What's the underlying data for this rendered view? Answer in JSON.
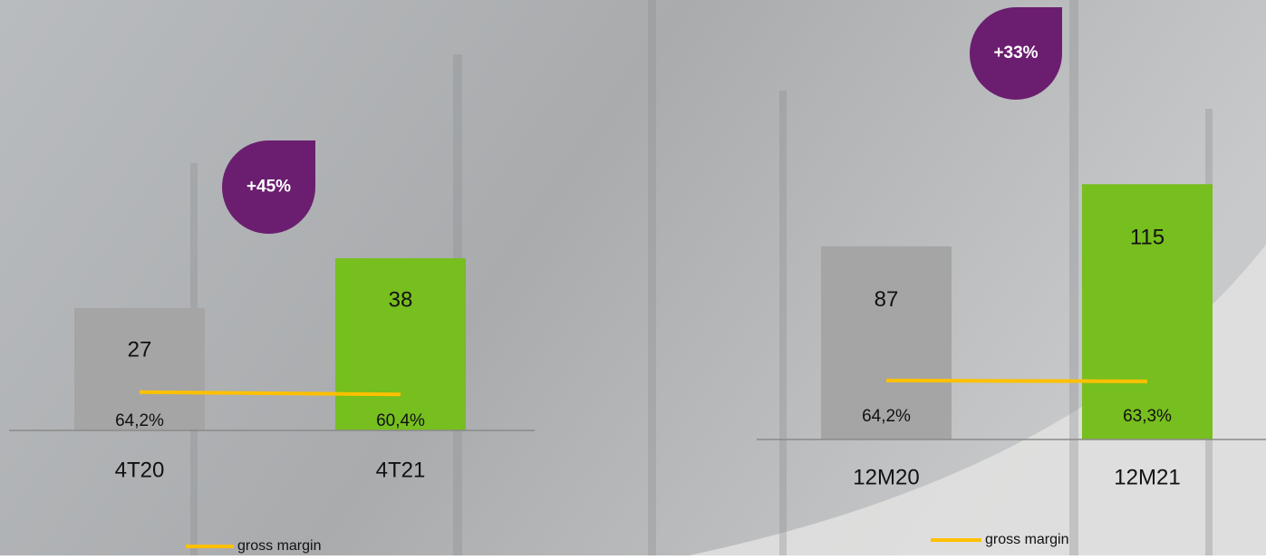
{
  "chart_data": [
    {
      "type": "bar",
      "categories": [
        "4T20",
        "4T21"
      ],
      "values": [
        27,
        38
      ],
      "colors": [
        "#a5a5a5",
        "#77be1f"
      ],
      "ylim": [
        0,
        50
      ],
      "series": [
        {
          "name": "gross margin",
          "type": "line",
          "axis": "y2",
          "color": "#ffc000",
          "values": [
            64.2,
            60.4
          ],
          "value_labels": [
            "64,2%",
            "60,4%"
          ]
        }
      ],
      "y2lim": [
        0,
        380
      ],
      "annotations": [
        {
          "text": "+45%"
        }
      ]
    },
    {
      "type": "bar",
      "categories": [
        "12M20",
        "12M21"
      ],
      "values": [
        87,
        115
      ],
      "colors": [
        "#a5a5a5",
        "#77be1f"
      ],
      "ylim": [
        0,
        120
      ],
      "series": [
        {
          "name": "gross margin",
          "type": "line",
          "axis": "y2",
          "color": "#ffc000",
          "values": [
            64.2,
            63.3
          ],
          "value_labels": [
            "64,2%",
            "63,3%"
          ]
        }
      ],
      "y2lim": [
        0,
        290
      ],
      "annotations": [
        {
          "text": "+33%"
        }
      ]
    }
  ]
}
